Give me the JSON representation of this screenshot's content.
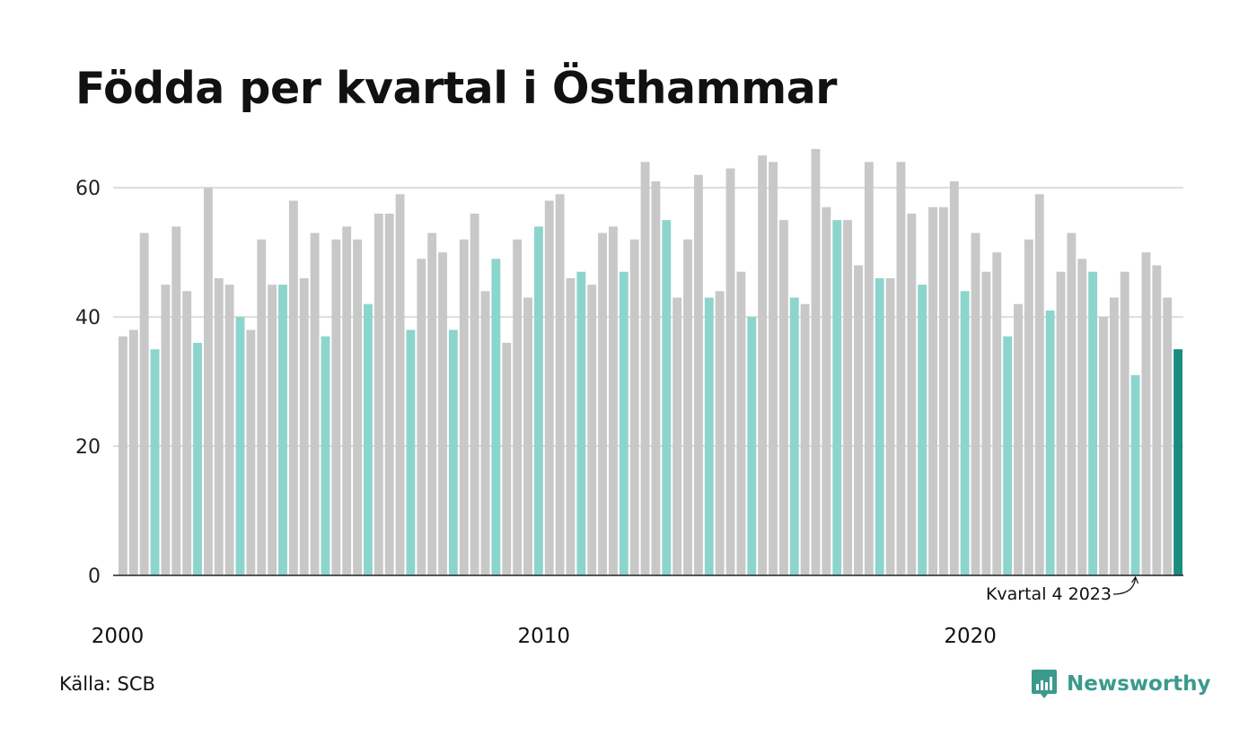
{
  "chart_data": {
    "type": "bar",
    "title": "Födda per kvartal i Östhammar",
    "xlabel": "",
    "ylabel": "",
    "ylim": [
      0,
      66
    ],
    "yticks": [
      0,
      20,
      40,
      60
    ],
    "xtick_labels": [
      {
        "label": "2000",
        "index": 0
      },
      {
        "label": "2010",
        "index": 40
      },
      {
        "label": "2020",
        "index": 80
      }
    ],
    "grid": true,
    "highlight_rule": "kvartal 4 each year highlighted; latest bar dark",
    "colors": {
      "default": "#c8c8c8",
      "q4": "#8cd5cc",
      "latest": "#1a8c80",
      "grid": "#dddddd",
      "axis": "#222222"
    },
    "annotation": {
      "text": "Kvartal 4 2023"
    },
    "series": [
      {
        "start_year": 2000,
        "start_quarter": 1,
        "values": [
          37,
          38,
          53,
          35,
          45,
          54,
          44,
          36,
          60,
          46,
          45,
          40,
          38,
          52,
          45,
          45,
          58,
          46,
          53,
          37,
          52,
          54,
          52,
          42,
          56,
          56,
          59,
          38,
          49,
          53,
          50,
          38,
          52,
          56,
          44,
          49,
          36,
          52,
          43,
          54,
          58,
          59,
          46,
          47,
          45,
          53,
          54,
          47,
          52,
          64,
          61,
          55,
          43,
          52,
          62,
          43,
          44,
          63,
          47,
          40,
          65,
          64,
          55,
          43,
          42,
          66,
          57,
          55,
          55,
          48,
          64,
          46,
          46,
          64,
          56,
          45,
          57,
          57,
          61,
          44,
          53,
          47,
          50,
          37,
          42,
          52,
          59,
          41,
          47,
          53,
          49,
          47,
          40,
          43,
          47,
          31,
          50,
          48,
          43,
          35
        ]
      }
    ]
  },
  "footer": {
    "source": "Källa: SCB",
    "brand": "Newsworthy",
    "brand_color": "#3b9a8c"
  }
}
